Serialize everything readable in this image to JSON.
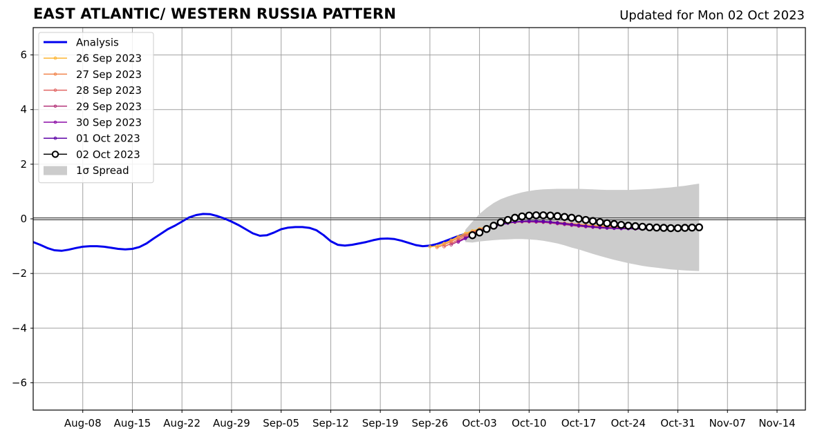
{
  "header": {
    "title": "EAST ATLANTIC/ WESTERN RUSSIA PATTERN",
    "updated": "Updated for Mon 02 Oct 2023"
  },
  "chart_data": {
    "type": "line",
    "title": "EAST ATLANTIC/ WESTERN RUSSIA PATTERN",
    "xlabel": "",
    "ylabel": "",
    "x_is_day_index": "days since Aug-01",
    "xlim": [
      0,
      109
    ],
    "ylim": [
      -7,
      7
    ],
    "grid": true,
    "legend_position": "top-left",
    "x_ticks": [
      {
        "day": 7,
        "label": "Aug-08"
      },
      {
        "day": 14,
        "label": "Aug-15"
      },
      {
        "day": 21,
        "label": "Aug-22"
      },
      {
        "day": 28,
        "label": "Aug-29"
      },
      {
        "day": 35,
        "label": "Sep-05"
      },
      {
        "day": 42,
        "label": "Sep-12"
      },
      {
        "day": 49,
        "label": "Sep-19"
      },
      {
        "day": 56,
        "label": "Sep-26"
      },
      {
        "day": 63,
        "label": "Oct-03"
      },
      {
        "day": 70,
        "label": "Oct-10"
      },
      {
        "day": 77,
        "label": "Oct-17"
      },
      {
        "day": 84,
        "label": "Oct-24"
      },
      {
        "day": 91,
        "label": "Oct-31"
      },
      {
        "day": 98,
        "label": "Nov-07"
      },
      {
        "day": 105,
        "label": "Nov-14"
      }
    ],
    "y_ticks": [
      {
        "value": 6,
        "label": "6"
      },
      {
        "value": 4,
        "label": "4"
      },
      {
        "value": 2,
        "label": "2"
      },
      {
        "value": 0,
        "label": "0"
      },
      {
        "value": -2,
        "label": "−2"
      },
      {
        "value": -4,
        "label": "−4"
      },
      {
        "value": -6,
        "label": "−6"
      }
    ],
    "zero_line": true,
    "analysis": {
      "name": "Analysis",
      "color": "#0000ee",
      "x": [
        0,
        1,
        2,
        3,
        4,
        5,
        6,
        7,
        8,
        9,
        10,
        11,
        12,
        13,
        14,
        15,
        16,
        17,
        18,
        19,
        20,
        21,
        22,
        23,
        24,
        25,
        26,
        27,
        28,
        29,
        30,
        31,
        32,
        33,
        34,
        35,
        36,
        37,
        38,
        39,
        40,
        41,
        42,
        43,
        44,
        45,
        46,
        47,
        48,
        49,
        50,
        51,
        52,
        53,
        54,
        55,
        56,
        57,
        58,
        59,
        60,
        61
      ],
      "y": [
        -0.85,
        -0.95,
        -1.07,
        -1.15,
        -1.17,
        -1.13,
        -1.07,
        -1.02,
        -1.0,
        -1.0,
        -1.02,
        -1.06,
        -1.1,
        -1.12,
        -1.1,
        -1.03,
        -0.9,
        -0.72,
        -0.55,
        -0.38,
        -0.25,
        -0.1,
        0.05,
        0.14,
        0.18,
        0.17,
        0.1,
        0.01,
        -0.1,
        -0.23,
        -0.38,
        -0.53,
        -0.62,
        -0.6,
        -0.5,
        -0.38,
        -0.32,
        -0.3,
        -0.3,
        -0.33,
        -0.42,
        -0.6,
        -0.82,
        -0.95,
        -0.98,
        -0.95,
        -0.9,
        -0.85,
        -0.78,
        -0.73,
        -0.72,
        -0.74,
        -0.8,
        -0.88,
        -0.96,
        -1.0,
        -0.98,
        -0.92,
        -0.83,
        -0.73,
        -0.63,
        -0.55
      ]
    },
    "spread": {
      "name": "1σ Spread",
      "color": "#cccccc",
      "x": [
        61,
        62,
        63,
        64,
        65,
        66,
        67,
        68,
        69,
        70,
        71,
        72,
        73,
        74,
        75,
        76,
        77,
        78,
        79,
        80,
        81,
        82,
        83,
        84,
        85,
        86,
        87,
        88,
        89,
        90,
        91,
        92,
        93,
        94
      ],
      "upper": [
        -0.4,
        -0.1,
        0.18,
        0.4,
        0.58,
        0.72,
        0.82,
        0.9,
        0.97,
        1.02,
        1.06,
        1.08,
        1.09,
        1.1,
        1.1,
        1.1,
        1.1,
        1.09,
        1.08,
        1.07,
        1.06,
        1.06,
        1.06,
        1.06,
        1.07,
        1.08,
        1.09,
        1.11,
        1.13,
        1.15,
        1.18,
        1.21,
        1.25,
        1.29
      ],
      "lower": [
        -0.85,
        -0.87,
        -0.83,
        -0.8,
        -0.78,
        -0.76,
        -0.75,
        -0.74,
        -0.74,
        -0.75,
        -0.77,
        -0.8,
        -0.85,
        -0.9,
        -0.97,
        -1.05,
        -1.12,
        -1.2,
        -1.28,
        -1.36,
        -1.43,
        -1.5,
        -1.56,
        -1.62,
        -1.67,
        -1.72,
        -1.76,
        -1.79,
        -1.82,
        -1.85,
        -1.87,
        -1.89,
        -1.9,
        -1.91
      ]
    },
    "forecasts": [
      {
        "name": "26 Sep 2023",
        "color": "#fcb431",
        "x_start": 56,
        "y": [
          -1.02,
          -1.0,
          -0.9,
          -0.78,
          -0.65,
          -0.53,
          -0.44,
          -0.36,
          -0.3,
          -0.24,
          -0.2,
          -0.16,
          -0.13,
          -0.11,
          -0.1,
          -0.1,
          -0.11,
          -0.12,
          -0.14,
          -0.16,
          -0.18,
          -0.2,
          -0.22,
          -0.24,
          -0.26,
          -0.27,
          -0.28,
          -0.29,
          -0.29,
          -0.3,
          -0.3,
          -0.3,
          -0.31,
          -0.31,
          -0.31
        ]
      },
      {
        "name": "27 Sep 2023",
        "color": "#f1844b",
        "x_start": 57,
        "y": [
          -1.05,
          -0.95,
          -0.83,
          -0.7,
          -0.58,
          -0.48,
          -0.39,
          -0.31,
          -0.25,
          -0.19,
          -0.15,
          -0.12,
          -0.1,
          -0.09,
          -0.09,
          -0.1,
          -0.11,
          -0.13,
          -0.15,
          -0.18,
          -0.2,
          -0.23,
          -0.25,
          -0.27,
          -0.28,
          -0.29,
          -0.3,
          -0.31,
          -0.31,
          -0.32,
          -0.32,
          -0.32,
          -0.32,
          -0.33
        ]
      },
      {
        "name": "28 Sep 2023",
        "color": "#e16462",
        "x_start": 58,
        "y": [
          -1.02,
          -0.9,
          -0.76,
          -0.62,
          -0.5,
          -0.4,
          -0.31,
          -0.24,
          -0.18,
          -0.14,
          -0.11,
          -0.1,
          -0.1,
          -0.11,
          -0.12,
          -0.14,
          -0.16,
          -0.19,
          -0.21,
          -0.24,
          -0.26,
          -0.28,
          -0.3,
          -0.31,
          -0.32,
          -0.33,
          -0.33,
          -0.34,
          -0.34,
          -0.34,
          -0.34,
          -0.34,
          -0.34
        ]
      },
      {
        "name": "29 Sep 2023",
        "color": "#b5367a",
        "x_start": 59,
        "y": [
          -0.95,
          -0.82,
          -0.68,
          -0.55,
          -0.44,
          -0.34,
          -0.26,
          -0.2,
          -0.15,
          -0.12,
          -0.11,
          -0.11,
          -0.12,
          -0.13,
          -0.15,
          -0.18,
          -0.21,
          -0.24,
          -0.27,
          -0.29,
          -0.31,
          -0.33,
          -0.34,
          -0.35,
          -0.35,
          -0.36,
          -0.36,
          -0.36,
          -0.36,
          -0.36,
          -0.36,
          -0.36
        ]
      },
      {
        "name": "30 Sep 2023",
        "color": "#8b0aa5",
        "x_start": 60,
        "y": [
          -0.85,
          -0.72,
          -0.58,
          -0.46,
          -0.36,
          -0.27,
          -0.2,
          -0.15,
          -0.11,
          -0.09,
          -0.09,
          -0.1,
          -0.11,
          -0.13,
          -0.16,
          -0.19,
          -0.22,
          -0.25,
          -0.28,
          -0.3,
          -0.32,
          -0.34,
          -0.35,
          -0.36,
          -0.36,
          -0.37,
          -0.37,
          -0.37,
          -0.37,
          -0.37,
          -0.37
        ]
      },
      {
        "name": "01 Oct 2023",
        "color": "#5c01a6",
        "x_start": 61,
        "y": [
          -0.72,
          -0.6,
          -0.48,
          -0.38,
          -0.29,
          -0.22,
          -0.16,
          -0.12,
          -0.09,
          -0.08,
          -0.08,
          -0.09,
          -0.11,
          -0.14,
          -0.17,
          -0.2,
          -0.23,
          -0.26,
          -0.29,
          -0.31,
          -0.33,
          -0.34,
          -0.35,
          -0.36,
          -0.36,
          -0.36,
          -0.37,
          -0.37,
          -0.37,
          -0.37
        ]
      },
      {
        "name": "02 Oct 2023",
        "color": "#000000",
        "x_start": 62,
        "y": [
          -0.6,
          -0.5,
          -0.37,
          -0.25,
          -0.13,
          -0.04,
          0.04,
          0.09,
          0.12,
          0.13,
          0.13,
          0.12,
          0.1,
          0.07,
          0.04,
          0.0,
          -0.04,
          -0.08,
          -0.12,
          -0.16,
          -0.19,
          -0.22,
          -0.25,
          -0.27,
          -0.29,
          -0.31,
          -0.32,
          -0.33,
          -0.34,
          -0.34,
          -0.33,
          -0.32,
          -0.31
        ]
      }
    ],
    "legend": [
      {
        "label": "Analysis",
        "kind": "thick-line",
        "color": "#0000ee"
      },
      {
        "label": "26 Sep 2023",
        "kind": "dot-line",
        "color": "#fcb431"
      },
      {
        "label": "27 Sep 2023",
        "kind": "dot-line",
        "color": "#f1844b"
      },
      {
        "label": "28 Sep 2023",
        "kind": "dot-line",
        "color": "#e16462"
      },
      {
        "label": "29 Sep 2023",
        "kind": "dot-line",
        "color": "#b5367a"
      },
      {
        "label": "30 Sep 2023",
        "kind": "dot-line",
        "color": "#8b0aa5"
      },
      {
        "label": "01 Oct 2023",
        "kind": "dot-line",
        "color": "#5c01a6"
      },
      {
        "label": "02 Oct 2023",
        "kind": "circle-line",
        "color": "#000000"
      },
      {
        "label": "1σ Spread",
        "kind": "patch",
        "color": "#cccccc"
      }
    ]
  }
}
